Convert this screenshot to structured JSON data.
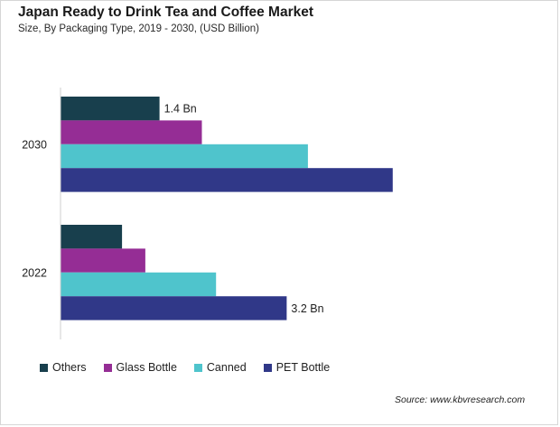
{
  "header": {
    "title": "Japan Ready to Drink Tea and Coffee Market",
    "subtitle": "Size, By Packaging Type, 2019 - 2030, (USD Billion)"
  },
  "chart_data": {
    "type": "bar",
    "orientation": "horizontal",
    "categories": [
      "2030",
      "2022"
    ],
    "series": [
      {
        "name": "Others",
        "color": "#183f4d",
        "values": [
          1.4,
          0.87
        ]
      },
      {
        "name": "Glass Bottle",
        "color": "#952d95",
        "values": [
          2.0,
          1.2
        ]
      },
      {
        "name": "Canned",
        "color": "#4fc4cc",
        "values": [
          3.5,
          2.2
        ]
      },
      {
        "name": "PET Bottle",
        "color": "#303888",
        "values": [
          4.7,
          3.2
        ]
      }
    ],
    "data_labels": [
      {
        "category": "2030",
        "series": "Others",
        "text": "1.4 Bn"
      },
      {
        "category": "2022",
        "series": "PET Bottle",
        "text": "3.2 Bn"
      }
    ],
    "xlim": [
      0,
      6.3
    ],
    "grid": false,
    "legend_position": "bottom-left"
  },
  "source": "Source: www.kbvresearch.com"
}
